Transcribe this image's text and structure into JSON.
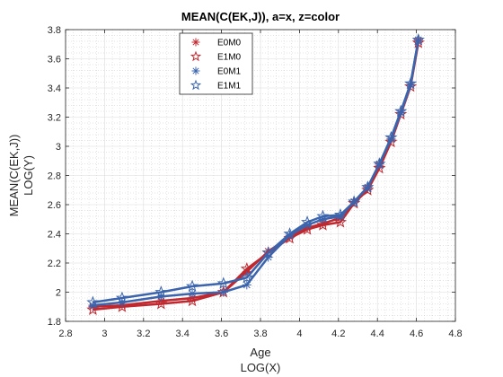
{
  "chart_data": {
    "type": "line",
    "title": "MEAN(C(EK,J)), a=x, z=color",
    "xlabel": [
      "Age",
      "LOG(X)"
    ],
    "ylabel": [
      "MEAN(C(EK,J))",
      "LOG(Y)"
    ],
    "xlim": [
      2.8,
      4.8
    ],
    "ylim": [
      1.8,
      3.8
    ],
    "xticks": [
      2.8,
      3,
      3.2,
      3.4,
      3.6,
      3.8,
      4,
      4.2,
      4.4,
      4.6,
      4.8
    ],
    "xtick_labels": [
      "2.8",
      "3",
      "3.2",
      "3.4",
      "3.6",
      "3.8",
      "4",
      "4.2",
      "4.4",
      "4.6",
      "4.8"
    ],
    "yticks": [
      1.8,
      2,
      2.2,
      2.4,
      2.6,
      2.8,
      3,
      3.2,
      3.4,
      3.6,
      3.8
    ],
    "ytick_labels": [
      "1.8",
      "2",
      "2.2",
      "2.4",
      "2.6",
      "2.8",
      "3",
      "3.2",
      "3.4",
      "3.6",
      "3.8"
    ],
    "grid": true,
    "minor_grid": true,
    "legend_position": "top-center",
    "series": [
      {
        "name": "E0M0",
        "color": "#c0282f",
        "marker": "asterisk",
        "x": [
          2.94,
          3.09,
          3.29,
          3.45,
          3.61,
          3.73,
          3.84,
          3.95,
          4.04,
          4.12,
          4.21,
          4.28,
          4.35,
          4.41,
          4.47,
          4.52,
          4.57,
          4.61
        ],
        "y": [
          1.9,
          1.91,
          1.94,
          1.96,
          2.0,
          2.14,
          2.28,
          2.38,
          2.44,
          2.47,
          2.51,
          2.62,
          2.71,
          2.87,
          3.05,
          3.23,
          3.42,
          3.72
        ]
      },
      {
        "name": "E1M0",
        "color": "#c0282f",
        "marker": "star",
        "x": [
          2.94,
          3.09,
          3.29,
          3.45,
          3.61,
          3.73,
          3.84,
          3.95,
          4.04,
          4.12,
          4.21,
          4.28,
          4.35,
          4.41,
          4.47,
          4.52,
          4.57,
          4.61
        ],
        "y": [
          1.88,
          1.9,
          1.92,
          1.94,
          2.0,
          2.16,
          2.27,
          2.37,
          2.43,
          2.46,
          2.48,
          2.61,
          2.7,
          2.85,
          3.03,
          3.22,
          3.41,
          3.71
        ]
      },
      {
        "name": "E0M1",
        "color": "#3b64ad",
        "marker": "asterisk",
        "x": [
          2.94,
          3.09,
          3.29,
          3.45,
          3.61,
          3.73,
          3.84,
          3.95,
          4.04,
          4.12,
          4.21,
          4.28,
          4.35,
          4.41,
          4.47,
          4.52,
          4.57,
          4.61
        ],
        "y": [
          1.91,
          1.93,
          1.97,
          1.99,
          2.0,
          2.05,
          2.24,
          2.39,
          2.46,
          2.5,
          2.52,
          2.62,
          2.72,
          2.88,
          3.05,
          3.23,
          3.42,
          3.73
        ]
      },
      {
        "name": "E1M1",
        "color": "#3b64ad",
        "marker": "star",
        "x": [
          2.94,
          3.09,
          3.29,
          3.45,
          3.61,
          3.73,
          3.84,
          3.95,
          4.04,
          4.12,
          4.21,
          4.28,
          4.35,
          4.41,
          4.47,
          4.52,
          4.57,
          4.61
        ],
        "y": [
          1.93,
          1.96,
          2.0,
          2.04,
          2.06,
          2.1,
          2.27,
          2.4,
          2.48,
          2.52,
          2.53,
          2.62,
          2.72,
          2.88,
          3.06,
          3.24,
          3.43,
          3.73
        ]
      }
    ]
  }
}
